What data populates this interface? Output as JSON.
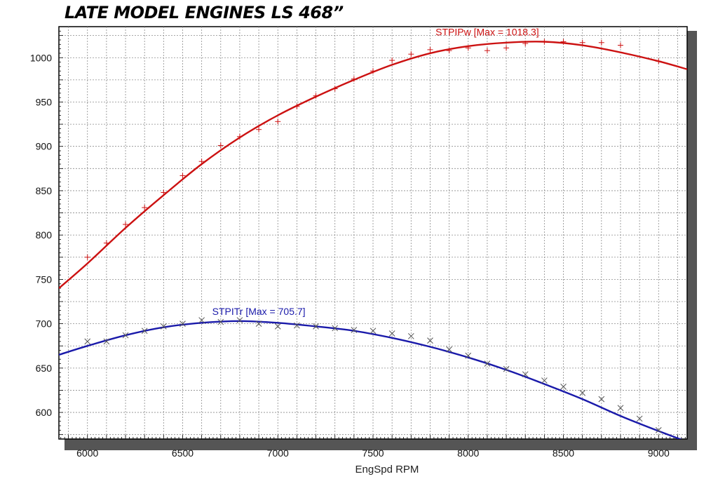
{
  "chart_data": {
    "type": "line",
    "title": "LATE MODEL ENGINES  LS 468”",
    "xlabel": "EngSpd RPM",
    "ylabel": "",
    "xlim": [
      5850,
      9150
    ],
    "ylim": [
      570,
      1035
    ],
    "xticks": [
      6000,
      6500,
      7000,
      7500,
      8000,
      8500,
      9000
    ],
    "yticks": [
      600,
      650,
      700,
      750,
      800,
      850,
      900,
      950,
      1000
    ],
    "grid": true,
    "series": [
      {
        "name": "STPIPw",
        "annotation": "STPIPw [Max = 1018.3]",
        "color": "#cc1111",
        "marker": "+",
        "curve": {
          "x": [
            5850,
            6000,
            6200,
            6400,
            6600,
            6800,
            7000,
            7200,
            7400,
            7600,
            7800,
            8000,
            8200,
            8400,
            8600,
            8800,
            9000,
            9150
          ],
          "y": [
            740,
            768,
            808,
            845,
            880,
            910,
            935,
            956,
            975,
            992,
            1005,
            1013,
            1017,
            1018,
            1014,
            1006,
            996,
            987
          ]
        },
        "points": {
          "x": [
            6000,
            6100,
            6200,
            6300,
            6400,
            6500,
            6600,
            6700,
            6800,
            6900,
            7000,
            7100,
            7200,
            7300,
            7400,
            7500,
            7600,
            7700,
            7800,
            7900,
            8000,
            8100,
            8200,
            8300,
            8400,
            8500,
            8600,
            8700,
            8800,
            9000
          ],
          "y": [
            775,
            791,
            812,
            831,
            848,
            867,
            883,
            901,
            911,
            919,
            928,
            945,
            957,
            965,
            976,
            985,
            997,
            1004,
            1009,
            1008,
            1011,
            1008,
            1011,
            1016,
            1018,
            1018,
            1017,
            1017,
            1014,
            996
          ]
        }
      },
      {
        "name": "STPITr",
        "annotation": "STPITr [Max = 705.7]",
        "color": "#1a1aaa",
        "marker": "x",
        "curve": {
          "x": [
            5850,
            6000,
            6200,
            6400,
            6600,
            6800,
            7000,
            7200,
            7400,
            7600,
            7800,
            8000,
            8200,
            8400,
            8600,
            8800,
            9000,
            9150
          ],
          "y": [
            665,
            675,
            687,
            696,
            701,
            703,
            701,
            697,
            692,
            684,
            674,
            662,
            648,
            632,
            615,
            596,
            579,
            567
          ]
        },
        "points": {
          "x": [
            6000,
            6100,
            6200,
            6300,
            6400,
            6500,
            6600,
            6700,
            6800,
            6900,
            7000,
            7100,
            7200,
            7300,
            7400,
            7500,
            7600,
            7700,
            7800,
            7900,
            8000,
            8100,
            8200,
            8300,
            8400,
            8500,
            8600,
            8700,
            8800,
            8900,
            9000
          ],
          "y": [
            680,
            680,
            687,
            692,
            697,
            700,
            704,
            702,
            704,
            700,
            697,
            698,
            697,
            695,
            693,
            692,
            689,
            686,
            681,
            671,
            664,
            655,
            649,
            643,
            636,
            629,
            622,
            615,
            605,
            593,
            580
          ]
        }
      }
    ]
  }
}
